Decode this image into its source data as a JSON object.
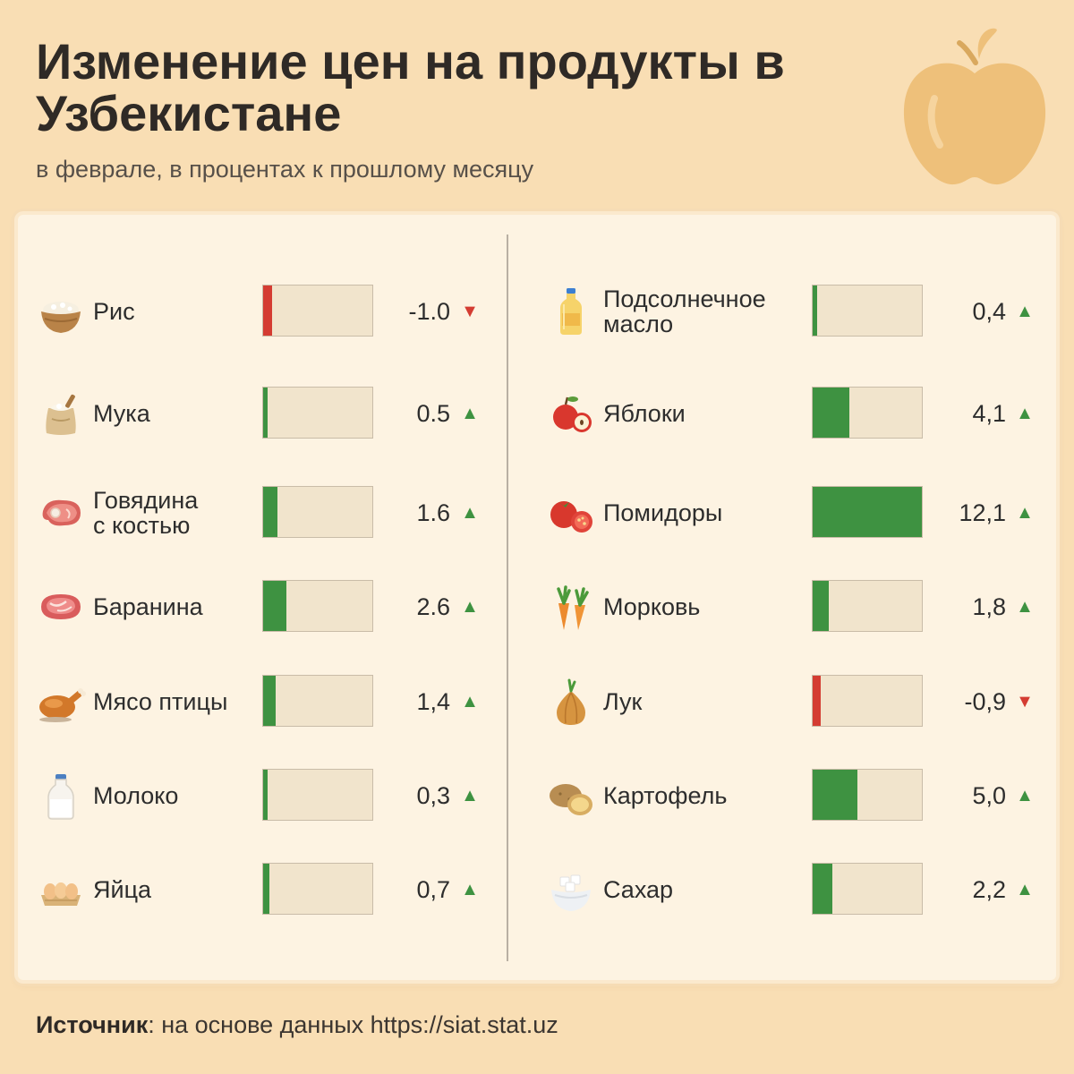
{
  "header": {
    "title": "Изменение цен на продукты в Узбекистане",
    "subtitle": "в феврале, в процентах к прошлому месяцу"
  },
  "footer": {
    "source_label": "Источник",
    "source_text": ": на основе данных https://siat.stat.uz"
  },
  "colors": {
    "up": "#3e9241",
    "down": "#d43c32",
    "track": "#f1e4cc",
    "background": "#f9deb4"
  },
  "chart_data": {
    "type": "bar",
    "title": "Изменение цен на продукты в Узбекистане",
    "subtitle": "в феврале, в процентах к прошлому месяцу",
    "unit": "%",
    "xlim": [
      0,
      12.1
    ],
    "columns": [
      {
        "items": [
          {
            "label": "Рис",
            "value": -1.0,
            "display": "-1.0",
            "direction": "down",
            "icon": "rice-bowl-icon"
          },
          {
            "label": "Мука",
            "value": 0.5,
            "display": "0.5",
            "direction": "up",
            "icon": "flour-sack-icon"
          },
          {
            "label": "Говядина\nс костью",
            "value": 1.6,
            "display": "1.6",
            "direction": "up",
            "icon": "beef-steak-icon"
          },
          {
            "label": "Баранина",
            "value": 2.6,
            "display": "2.6",
            "direction": "up",
            "icon": "lamb-meat-icon"
          },
          {
            "label": "Мясо птицы",
            "value": 1.4,
            "display": "1,4",
            "direction": "up",
            "icon": "roast-chicken-icon"
          },
          {
            "label": "Молоко",
            "value": 0.3,
            "display": "0,3",
            "direction": "up",
            "icon": "milk-bottle-icon"
          },
          {
            "label": "Яйца",
            "value": 0.7,
            "display": "0,7",
            "direction": "up",
            "icon": "eggs-icon"
          }
        ]
      },
      {
        "items": [
          {
            "label": "Подсолнечное\nмасло",
            "value": 0.4,
            "display": "0,4",
            "direction": "up",
            "icon": "oil-bottle-icon"
          },
          {
            "label": "Яблоки",
            "value": 4.1,
            "display": "4,1",
            "direction": "up",
            "icon": "apples-icon"
          },
          {
            "label": "Помидоры",
            "value": 12.1,
            "display": "12,1",
            "direction": "up",
            "icon": "tomatoes-icon"
          },
          {
            "label": "Морковь",
            "value": 1.8,
            "display": "1,8",
            "direction": "up",
            "icon": "carrots-icon"
          },
          {
            "label": "Лук",
            "value": -0.9,
            "display": "-0,9",
            "direction": "down",
            "icon": "onion-icon"
          },
          {
            "label": "Картофель",
            "value": 5.0,
            "display": "5,0",
            "direction": "up",
            "icon": "potatoes-icon"
          },
          {
            "label": "Сахар",
            "value": 2.2,
            "display": "2,2",
            "direction": "up",
            "icon": "sugar-bowl-icon"
          }
        ]
      }
    ]
  }
}
